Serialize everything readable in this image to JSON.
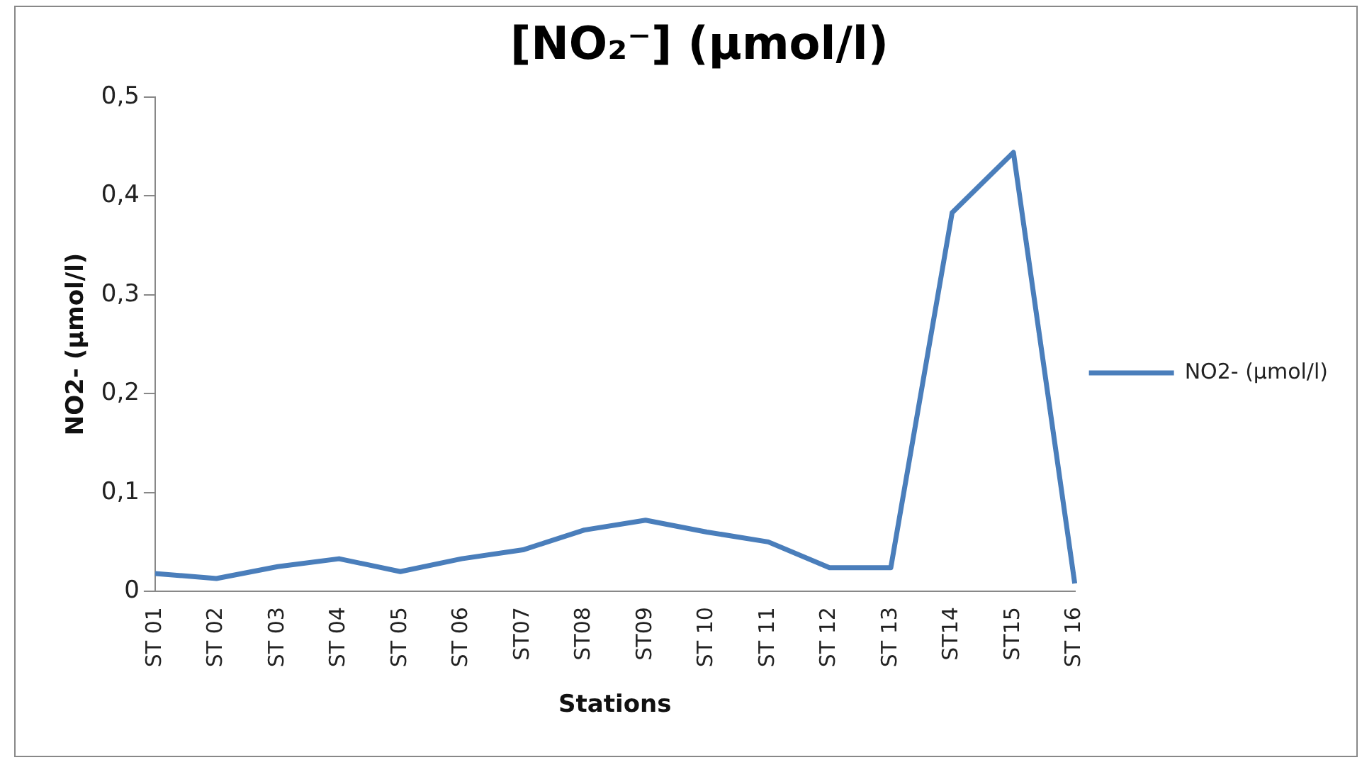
{
  "chart_data": {
    "type": "line",
    "title": "[NO₂⁻] (µmol/l)",
    "xlabel": "Stations",
    "ylabel": "NO2- (µmol/l)",
    "categories": [
      "ST 01",
      "ST 02",
      "ST 03",
      "ST 04",
      "ST 05",
      "ST 06",
      "ST07",
      "ST08",
      "ST09",
      "ST 10",
      "ST 11",
      "ST 12",
      "ST 13",
      "ST14",
      "ST15",
      "ST 16"
    ],
    "series": [
      {
        "name": "NO2- (µmol/l)",
        "color": "#4a7ebb",
        "values": [
          0.018,
          0.013,
          0.025,
          0.033,
          0.02,
          0.033,
          0.042,
          0.062,
          0.072,
          0.06,
          0.05,
          0.024,
          0.024,
          0.383,
          0.444,
          0.008
        ]
      }
    ],
    "ylim": [
      0,
      0.5
    ],
    "yticks": [
      0,
      {
        "value": 0.1,
        "label": "0,1"
      },
      {
        "value": 0.2,
        "label": "0,2"
      },
      {
        "value": 0.3,
        "label": "0,3"
      },
      {
        "value": 0.4,
        "label": "0,4"
      },
      {
        "value": 0.5,
        "label": "0,5"
      }
    ],
    "grid": false,
    "legend": "right",
    "marker": "none",
    "line_style": "solid"
  }
}
